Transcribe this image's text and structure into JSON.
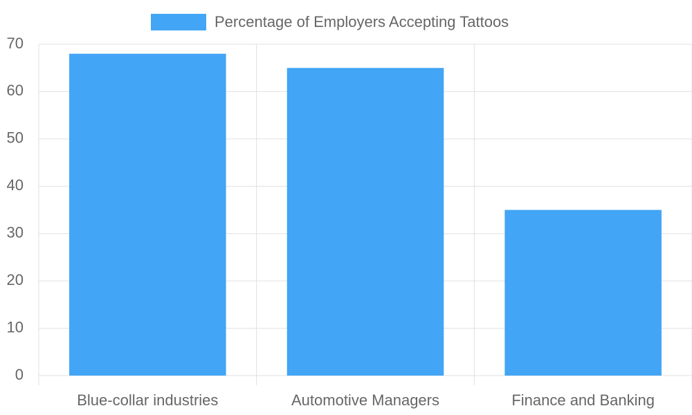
{
  "chart_data": {
    "type": "bar",
    "categories": [
      "Blue-collar industries",
      "Automotive Managers",
      "Finance and Banking"
    ],
    "series": [
      {
        "name": "Percentage of Employers Accepting Tattoos",
        "color": "#42a5f5",
        "values": [
          68,
          65,
          35
        ]
      }
    ],
    "ylim": [
      0,
      70
    ],
    "yticks": [
      0,
      10,
      20,
      30,
      40,
      50,
      60,
      70
    ],
    "grid": true,
    "legend": "top"
  }
}
